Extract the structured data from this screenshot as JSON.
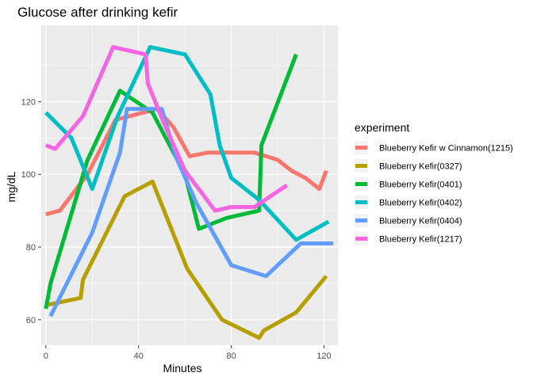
{
  "chart_data": {
    "type": "line",
    "title": "Glucose after drinking kefir",
    "xlabel": "Minutes",
    "ylabel": "mg/dL",
    "xlim": [
      -2,
      126
    ],
    "ylim": [
      53,
      141
    ],
    "xticks": [
      0,
      40,
      80,
      120
    ],
    "yticks": [
      60,
      80,
      100,
      120
    ],
    "grid": true,
    "legend_title": "experiment",
    "legend_position": "right",
    "series": [
      {
        "name": "Blueberry Kefir w Cinnamon(1215)",
        "color": "#F8766D",
        "x": [
          0,
          6,
          18,
          30,
          42,
          48,
          55,
          62,
          70,
          80,
          90,
          100,
          106,
          112,
          118,
          121
        ],
        "y": [
          89,
          90,
          100,
          115,
          117,
          118,
          113,
          105,
          106,
          106,
          106,
          104,
          101,
          99,
          96,
          101
        ]
      },
      {
        "name": "Blueberry Kefir(0327)",
        "color": "#B79F00",
        "x": [
          0,
          15,
          16,
          34,
          46,
          61,
          76,
          92,
          94,
          108,
          121
        ],
        "y": [
          64,
          66,
          71,
          94,
          98,
          74,
          60,
          55,
          57,
          62,
          72
        ]
      },
      {
        "name": "Blueberry Kefir(0401)",
        "color": "#00BA38",
        "x": [
          0,
          2,
          18,
          32,
          46,
          60,
          66,
          78,
          92,
          93,
          108
        ],
        "y": [
          63,
          70,
          104,
          123,
          117,
          100,
          85,
          88,
          90,
          108,
          133
        ]
      },
      {
        "name": "Blueberry Kefir(0402)",
        "color": "#00BFC4",
        "x": [
          0,
          11,
          20,
          31,
          45,
          60,
          71,
          75,
          80,
          92,
          108,
          122
        ],
        "y": [
          117,
          110,
          96,
          116,
          135,
          133,
          122,
          108,
          99,
          93,
          82,
          87
        ]
      },
      {
        "name": "Blueberry Kefir(0404)",
        "color": "#619CFF",
        "x": [
          2,
          20,
          32,
          35,
          50,
          56,
          65,
          80,
          95,
          110,
          124
        ],
        "y": [
          61,
          84,
          106,
          118,
          118,
          105,
          92,
          75,
          72,
          81,
          81
        ]
      },
      {
        "name": "Blueberry Kefir(1217)",
        "color": "#F564E3",
        "x": [
          0,
          4,
          16,
          29,
          43,
          44,
          51,
          60,
          73,
          80,
          90,
          104
        ],
        "y": [
          108,
          107,
          116,
          135,
          133,
          125,
          114,
          101,
          90,
          91,
          91,
          97
        ]
      }
    ]
  }
}
